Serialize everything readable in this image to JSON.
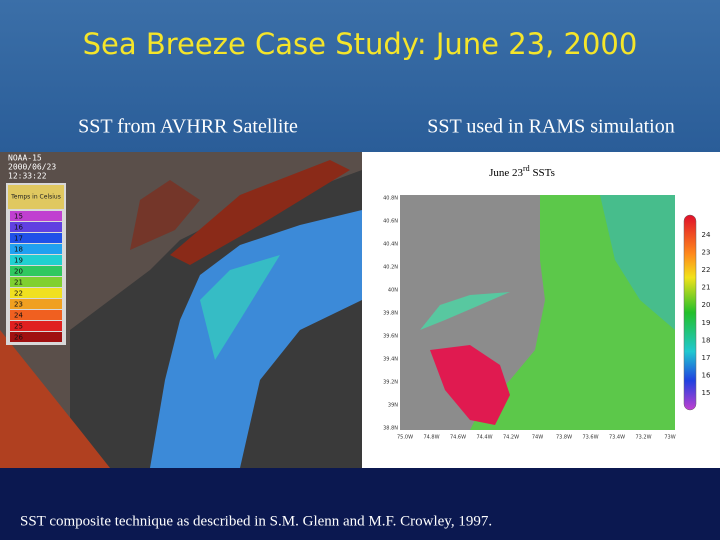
{
  "header": {
    "title": "Sea Breeze Case Study: June 23, 2000"
  },
  "left_panel": {
    "caption": "SST from AVHRR Satellite",
    "image_labels": [
      "NOAA-15",
      "2000/06/23",
      "12:33:22"
    ],
    "legend_title": "Temps in Celsius",
    "legend_values": [
      "15",
      "16",
      "17",
      "18",
      "19",
      "20",
      "21",
      "22",
      "23",
      "24",
      "25",
      "26"
    ]
  },
  "right_panel": {
    "caption": "SST used in RAMS simulation",
    "map_title": "June 23",
    "map_title_sup": "rd",
    "map_title_suffix": " SSTs",
    "lat_labels": [
      "40.8N",
      "40.6N",
      "40.4N",
      "40.2N",
      "40N",
      "39.8N",
      "39.6N",
      "39.4N",
      "39.2N",
      "39N",
      "38.8N"
    ],
    "lon_labels": [
      "75.0W",
      "74.8W",
      "74.6W",
      "74.4W",
      "74.2W",
      "74W",
      "73.8W",
      "73.6W",
      "73.4W",
      "73.2W",
      "73W"
    ],
    "colorbar_labels": [
      "24",
      "23",
      "22",
      "21",
      "20",
      "19",
      "18",
      "17",
      "16",
      "15"
    ]
  },
  "footer": {
    "note": "SST composite technique as described in S.M. Glenn and M.F. Crowley, 1997."
  }
}
